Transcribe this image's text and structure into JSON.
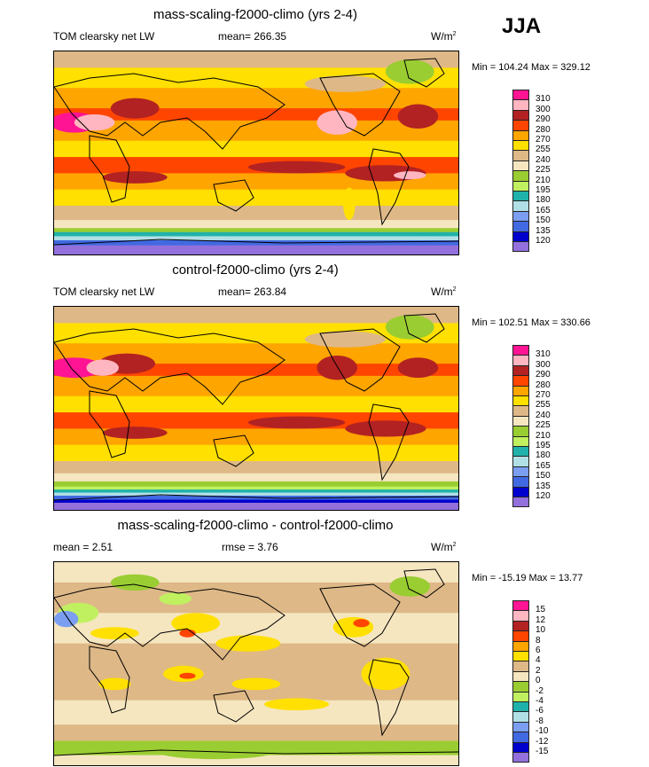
{
  "season": "JJA",
  "panels": [
    {
      "title": "mass-scaling-f2000-climo (yrs 2-4)",
      "left_label": "TOM clearsky net LW",
      "center_label": "mean= 266.35",
      "units": "W/m",
      "units_sup": "2",
      "minmax": "Min = 104.24 Max = 329.12",
      "levels": [
        "310",
        "300",
        "290",
        "280",
        "270",
        "255",
        "240",
        "225",
        "210",
        "195",
        "180",
        "165",
        "150",
        "135",
        "120"
      ]
    },
    {
      "title": "control-f2000-climo (yrs 2-4)",
      "left_label": "TOM clearsky net LW",
      "center_label": "mean= 263.84",
      "units": "W/m",
      "units_sup": "2",
      "minmax": "Min = 102.51 Max = 330.66",
      "levels": [
        "310",
        "300",
        "290",
        "280",
        "270",
        "255",
        "240",
        "225",
        "210",
        "195",
        "180",
        "165",
        "150",
        "135",
        "120"
      ]
    },
    {
      "title": "mass-scaling-f2000-climo - control-f2000-climo",
      "left_label": "mean =   2.51",
      "center_label": "rmse =   3.76",
      "units": "W/m",
      "units_sup": "2",
      "minmax": "Min = -15.19 Max =  13.77",
      "levels": [
        "15",
        "12",
        "10",
        "8",
        "6",
        "4",
        "2",
        "0",
        "-2",
        "-4",
        "-6",
        "-8",
        "-10",
        "-12",
        "-15"
      ]
    }
  ],
  "colors_top_to_bottom": [
    "#FF1493",
    "#FFB6C1",
    "#B22222",
    "#FF4500",
    "#FFA500",
    "#FFE000",
    "#DEB887",
    "#F5E6C0",
    "#9ACD32",
    "#C0F060",
    "#20B2AA",
    "#B0E0E6",
    "#7B9EF0",
    "#4169E1",
    "#0000CD",
    "#9370DB"
  ]
}
